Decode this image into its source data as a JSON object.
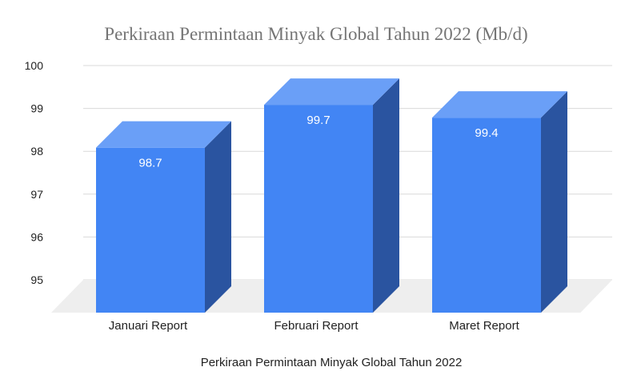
{
  "chart_data": {
    "type": "bar",
    "title": "Perkiraan Permintaan Minyak Global Tahun 2022 (Mb/d)",
    "xlabel": "Perkiraan Permintaan Minyak Global Tahun 2022",
    "ylabel": "",
    "categories": [
      "Januari Report",
      "Februari Report",
      "Maret Report"
    ],
    "values": [
      98.7,
      99.7,
      99.4
    ],
    "data_labels": [
      "98.7",
      "99.7",
      "99.4"
    ],
    "ylim": [
      95,
      100
    ],
    "yticks": [
      95,
      96,
      97,
      98,
      99,
      100
    ],
    "grid": true,
    "legend": "none",
    "style": "3d",
    "colors": {
      "bar_front": "#4285f4",
      "bar_top": "#6a9ff7",
      "bar_side": "#2a54a0",
      "floor": "#eeeeee"
    }
  }
}
